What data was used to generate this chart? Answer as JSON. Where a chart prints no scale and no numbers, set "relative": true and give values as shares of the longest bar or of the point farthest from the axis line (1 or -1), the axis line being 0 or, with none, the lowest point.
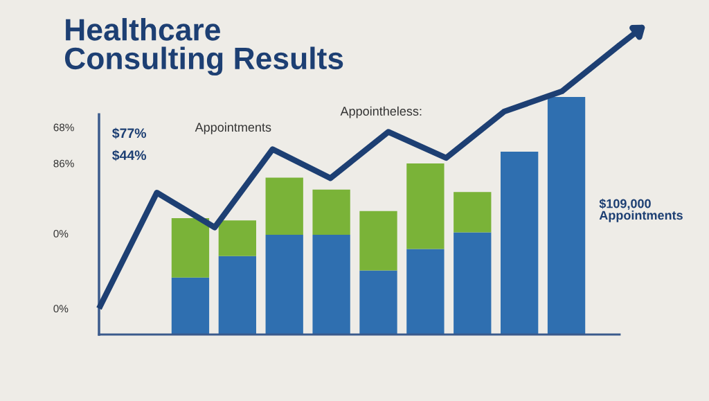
{
  "chart_data": [
    {
      "type": "bar",
      "title": "Healthcare\nConsulting Results",
      "relative": true,
      "stacked": true,
      "grid": false,
      "legend": false,
      "categories": [
        null,
        null,
        null,
        null,
        null,
        null,
        null,
        null,
        null
      ],
      "series": [
        {
          "color": "#2f6fb0",
          "values": [
            0.24,
            0.33,
            0.42,
            0.42,
            0.27,
            0.36,
            0.43,
            0.77,
            1.0
          ]
        },
        {
          "color": "#7ab338",
          "values": [
            0.25,
            0.15,
            0.24,
            0.19,
            0.25,
            0.36,
            0.17,
            0,
            0
          ]
        }
      ],
      "annotations": [
        "68%",
        "86%",
        "0%",
        "0%",
        "$77%",
        "$44%",
        "Appointments",
        "Appointheless:",
        "$109,000\nAppointments"
      ]
    },
    {
      "type": "line",
      "relative": true,
      "grid": false,
      "legend": false,
      "marker": "none",
      "line_style": "solid",
      "categories": [
        null,
        null,
        null,
        null,
        null,
        null,
        null,
        null,
        null,
        null
      ],
      "series": [
        {
          "color": "#1d3f73",
          "values": [
            0.09,
            0.49,
            0.37,
            0.64,
            0.54,
            0.7,
            0.61,
            0.77,
            0.84,
            1.0
          ]
        }
      ]
    }
  ]
}
